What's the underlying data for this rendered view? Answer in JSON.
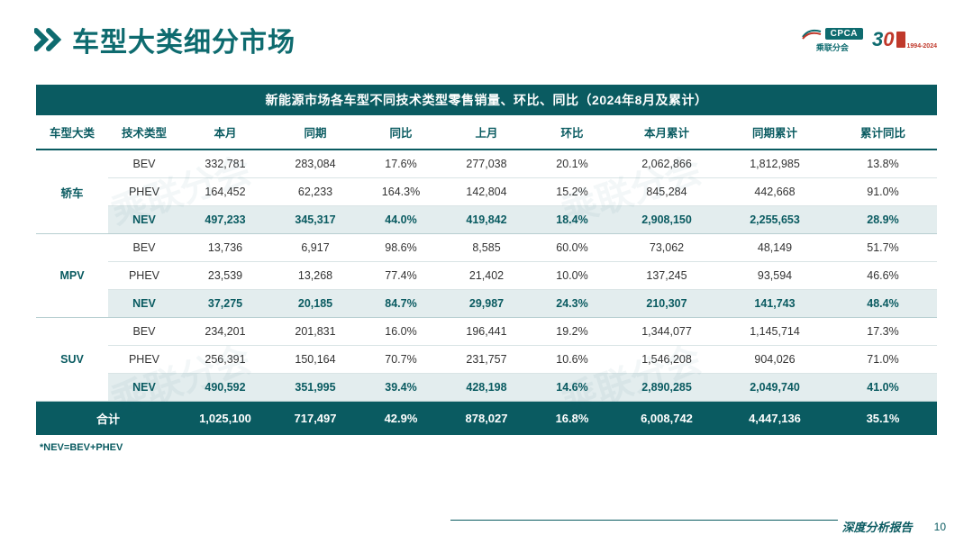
{
  "header": {
    "title": "车型大类细分市场",
    "logo_cpca_text": "CPCA",
    "logo_cpca_sub": "乘联分会",
    "logo_30_3": "3",
    "logo_30_0": "0",
    "logo_30_years": "1994-2024"
  },
  "table": {
    "caption": "新能源市场各车型不同技术类型零售销量、环比、同比（2024年8月及累计）",
    "columns": [
      "车型大类",
      "技术类型",
      "本月",
      "同期",
      "同比",
      "上月",
      "环比",
      "本月累计",
      "同期累计",
      "累计同比"
    ],
    "col_widths_pct": [
      8,
      8,
      10,
      10,
      9,
      10,
      9,
      12,
      12,
      12
    ],
    "groups": [
      {
        "category": "轿车",
        "rows": [
          {
            "tech": "BEV",
            "vals": [
              "332,781",
              "283,084",
              "17.6%",
              "277,038",
              "20.1%",
              "2,062,866",
              "1,812,985",
              "13.8%"
            ],
            "nev": false
          },
          {
            "tech": "PHEV",
            "vals": [
              "164,452",
              "62,233",
              "164.3%",
              "142,804",
              "15.2%",
              "845,284",
              "442,668",
              "91.0%"
            ],
            "nev": false
          },
          {
            "tech": "NEV",
            "vals": [
              "497,233",
              "345,317",
              "44.0%",
              "419,842",
              "18.4%",
              "2,908,150",
              "2,255,653",
              "28.9%"
            ],
            "nev": true
          }
        ]
      },
      {
        "category": "MPV",
        "rows": [
          {
            "tech": "BEV",
            "vals": [
              "13,736",
              "6,917",
              "98.6%",
              "8,585",
              "60.0%",
              "73,062",
              "48,149",
              "51.7%"
            ],
            "nev": false
          },
          {
            "tech": "PHEV",
            "vals": [
              "23,539",
              "13,268",
              "77.4%",
              "21,402",
              "10.0%",
              "137,245",
              "93,594",
              "46.6%"
            ],
            "nev": false
          },
          {
            "tech": "NEV",
            "vals": [
              "37,275",
              "20,185",
              "84.7%",
              "29,987",
              "24.3%",
              "210,307",
              "141,743",
              "48.4%"
            ],
            "nev": true
          }
        ]
      },
      {
        "category": "SUV",
        "rows": [
          {
            "tech": "BEV",
            "vals": [
              "234,201",
              "201,831",
              "16.0%",
              "196,441",
              "19.2%",
              "1,344,077",
              "1,145,714",
              "17.3%"
            ],
            "nev": false
          },
          {
            "tech": "PHEV",
            "vals": [
              "256,391",
              "150,164",
              "70.7%",
              "231,757",
              "10.6%",
              "1,546,208",
              "904,026",
              "71.0%"
            ],
            "nev": false
          },
          {
            "tech": "NEV",
            "vals": [
              "490,592",
              "351,995",
              "39.4%",
              "428,198",
              "14.6%",
              "2,890,285",
              "2,049,740",
              "41.0%"
            ],
            "nev": true
          }
        ]
      }
    ],
    "total": {
      "label": "合计",
      "vals": [
        "1,025,100",
        "717,497",
        "42.9%",
        "878,027",
        "16.8%",
        "6,008,742",
        "4,447,136",
        "35.1%"
      ]
    }
  },
  "footnote": "*NEV=BEV+PHEV",
  "footer": {
    "label": "深度分析报告",
    "page": "10"
  },
  "colors": {
    "brand": "#0a5b61",
    "brand_light": "#e3edee",
    "accent_red": "#c0392b",
    "text": "#333333",
    "border": "#d9e4e5"
  },
  "watermark_text": "乘联分会"
}
